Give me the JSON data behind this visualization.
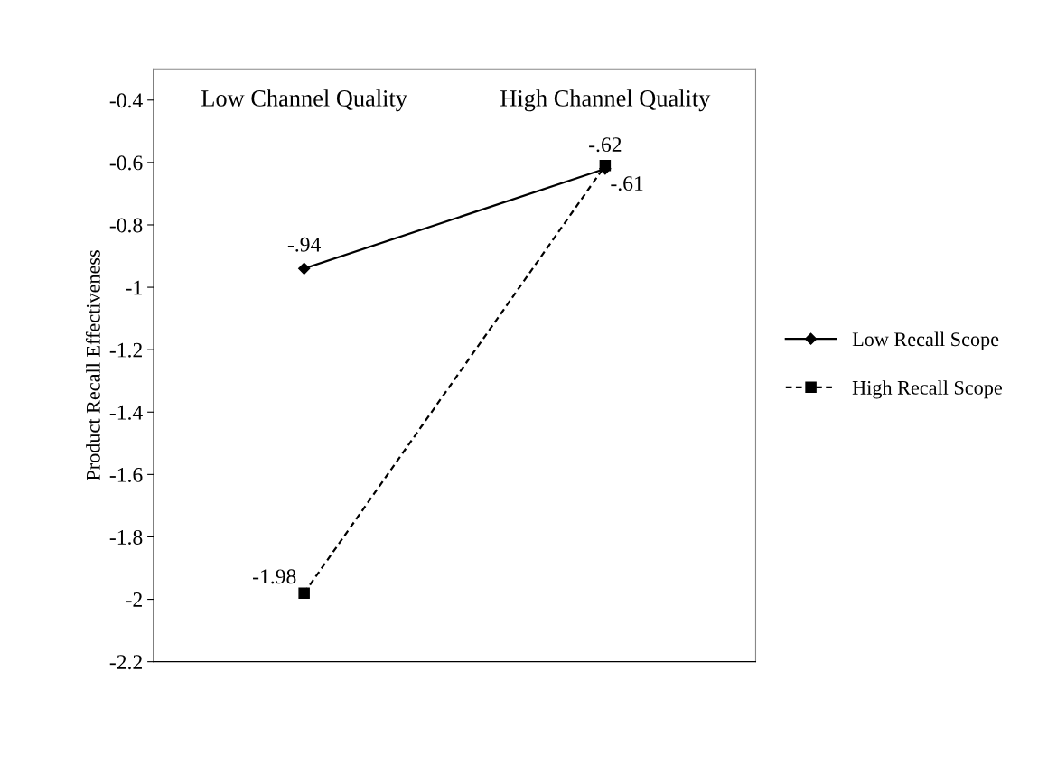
{
  "chart_data": {
    "type": "line",
    "categories": [
      "Low Channel Quality",
      "High Channel Quality"
    ],
    "ylabel": "Product Recall Effectiveness",
    "ylim": [
      -2.2,
      -0.3
    ],
    "yticks": [
      -2.2,
      -2,
      -1.8,
      -1.6,
      -1.4,
      -1.2,
      -1,
      -0.8,
      -0.6,
      -0.4
    ],
    "series": [
      {
        "name": "Low Recall Scope",
        "color": "#000000",
        "values": [
          -0.94,
          -0.62
        ],
        "marker": "diamond",
        "line_style": "solid",
        "value_labels": [
          "-.94",
          "-.62"
        ]
      },
      {
        "name": "High Recall Scope",
        "color": "#000000",
        "values": [
          -1.98,
          -0.61
        ],
        "marker": "square",
        "line_style": "dashed",
        "value_labels": [
          "-1.98",
          "-.61"
        ]
      }
    ],
    "grid": false,
    "legend": "right"
  }
}
